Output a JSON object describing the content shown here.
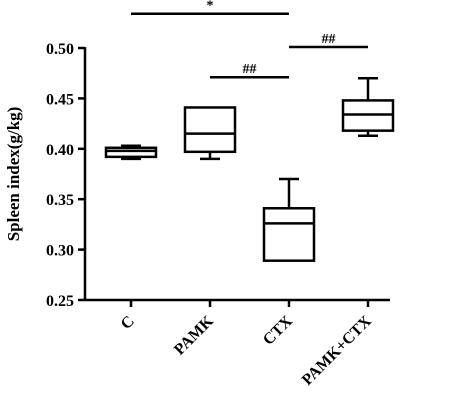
{
  "chart_data": {
    "type": "boxplot",
    "title": "",
    "xlabel": "",
    "ylabel": "Spleen index(g/kg)",
    "ylim": [
      0.25,
      0.5
    ],
    "yticks": [
      0.25,
      0.3,
      0.35,
      0.4,
      0.45,
      0.5
    ],
    "ytick_labels": [
      "0.25",
      "0.30",
      "0.35",
      "0.40",
      "0.45",
      "0.50"
    ],
    "grid": false,
    "legend": "none",
    "categories": [
      "C",
      "PAMK",
      "CTX",
      "PAMK+CTX"
    ],
    "boxes": [
      {
        "category": "C",
        "min": 0.39,
        "q1": 0.392,
        "median": 0.398,
        "q3": 0.401,
        "max": 0.403
      },
      {
        "category": "PAMK",
        "min": 0.39,
        "q1": 0.397,
        "median": 0.415,
        "q3": 0.441,
        "max": 0.441
      },
      {
        "category": "CTX",
        "min": 0.289,
        "q1": 0.289,
        "median": 0.326,
        "q3": 0.341,
        "max": 0.37
      },
      {
        "category": "PAMK+CTX",
        "min": 0.413,
        "q1": 0.418,
        "median": 0.434,
        "q3": 0.448,
        "max": 0.47
      }
    ],
    "annotations": [
      {
        "label": "*",
        "from": "C",
        "to": "CTX",
        "level": 0.534
      },
      {
        "label": "##",
        "from": "PAMK",
        "to": "CTX",
        "level": 0.471
      },
      {
        "label": "##",
        "from": "CTX",
        "to": "PAMK+CTX",
        "level": 0.501
      }
    ],
    "colors": {
      "line": "#000000",
      "background": "#ffffff"
    }
  }
}
